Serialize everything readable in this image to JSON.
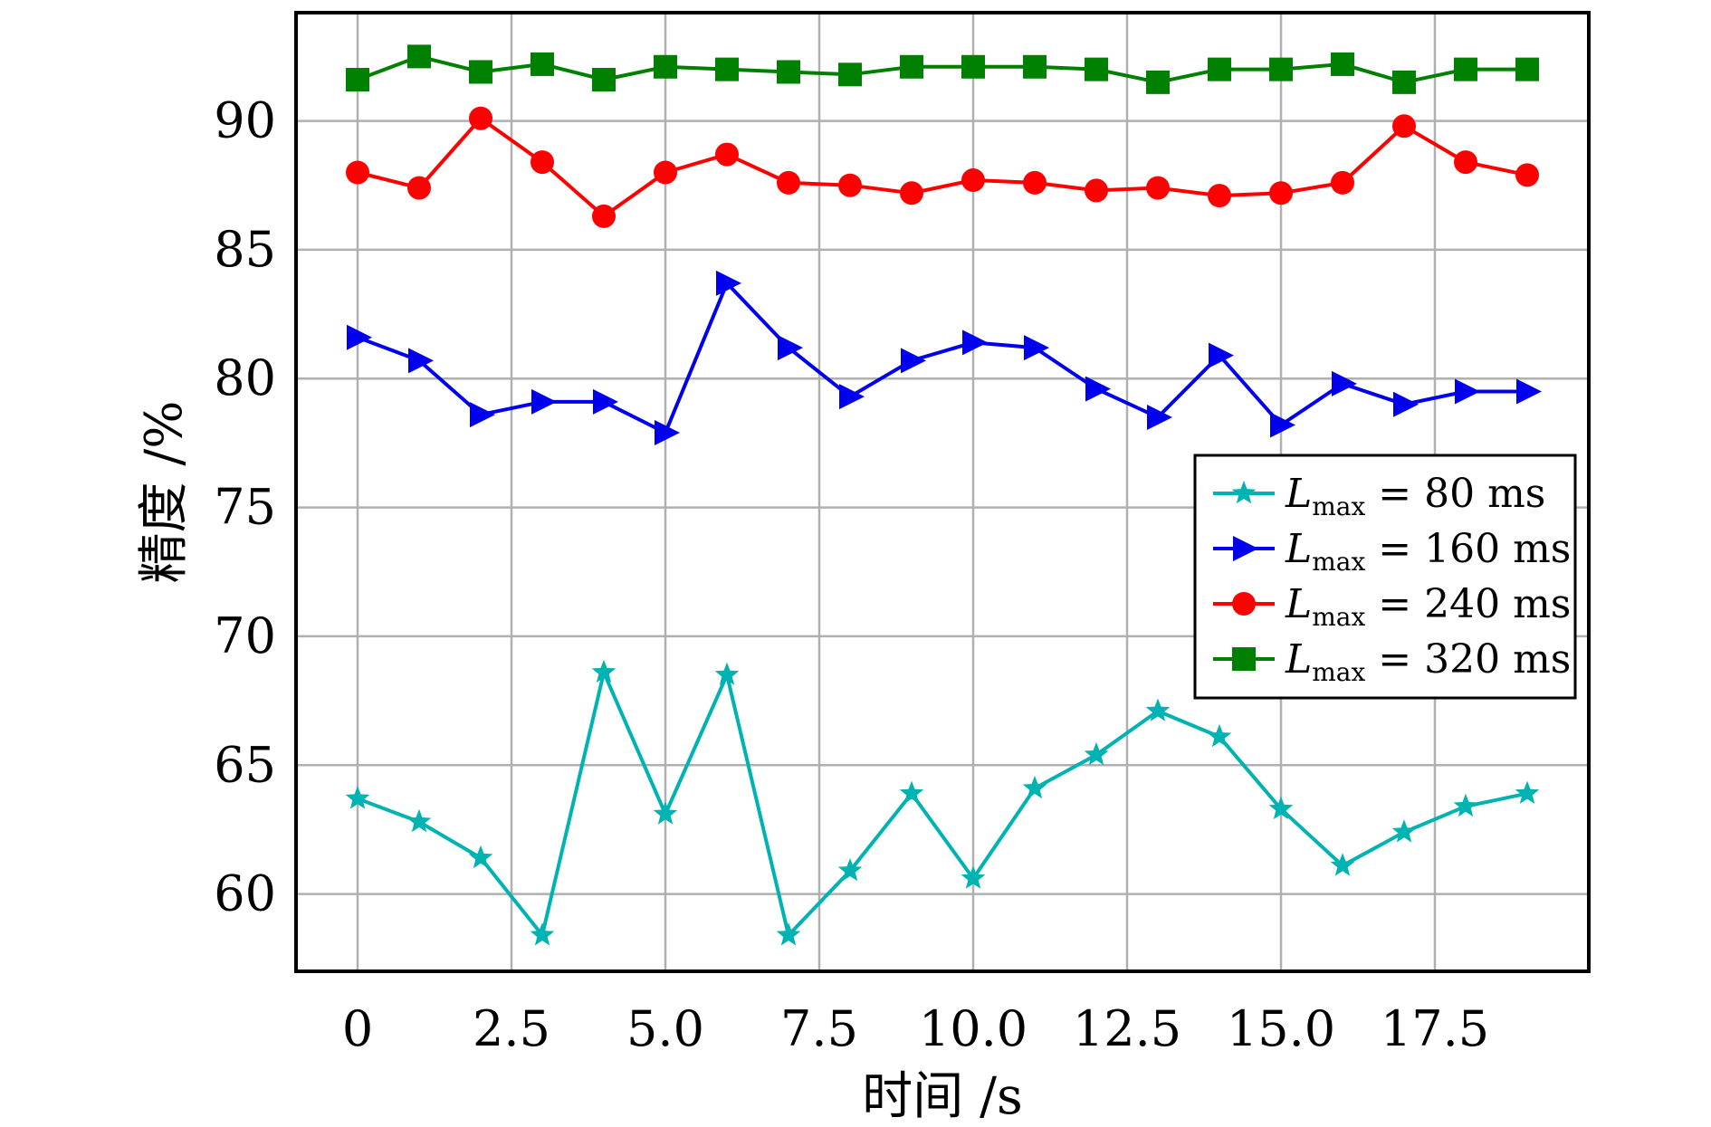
{
  "chart_data": {
    "type": "line",
    "xlabel": "时间 /s",
    "ylabel": "精度 /%",
    "xlim": [
      -1,
      20
    ],
    "ylim": [
      57,
      94.2
    ],
    "xticks": [
      0,
      2.5,
      5.0,
      7.5,
      10.0,
      12.5,
      15.0,
      17.5
    ],
    "xtick_labels": [
      "0",
      "2.5",
      "5.0",
      "7.5",
      "10.0",
      "12.5",
      "15.0",
      "17.5"
    ],
    "yticks": [
      60,
      65,
      70,
      75,
      80,
      85,
      90
    ],
    "ytick_labels": [
      "60",
      "65",
      "70",
      "75",
      "80",
      "85",
      "90"
    ],
    "grid": true,
    "legend_position": "center-right",
    "x": [
      0,
      1,
      2,
      3,
      4,
      5,
      6,
      7,
      8,
      9,
      10,
      11,
      12,
      13,
      14,
      15,
      16,
      17,
      18,
      19
    ],
    "series": [
      {
        "name": "L_max = 80 ms",
        "legend_symbol": "L",
        "legend_sub": "max",
        "legend_rest": " = 80 ms",
        "color": "#00b3b3",
        "marker": "star",
        "values": [
          63.7,
          62.8,
          61.4,
          58.4,
          68.6,
          63.1,
          68.5,
          58.4,
          60.9,
          63.9,
          60.6,
          64.1,
          65.4,
          67.1,
          66.1,
          63.3,
          61.1,
          62.4,
          63.4,
          63.9
        ]
      },
      {
        "name": "L_max = 160 ms",
        "legend_symbol": "L",
        "legend_sub": "max",
        "legend_rest": " = 160 ms",
        "color": "#0000ee",
        "marker": "triangle-right",
        "values": [
          81.6,
          80.7,
          78.6,
          79.1,
          79.1,
          77.9,
          83.7,
          81.2,
          79.3,
          80.7,
          81.4,
          81.2,
          79.6,
          78.5,
          80.9,
          78.2,
          79.8,
          79.0,
          79.5,
          79.5
        ]
      },
      {
        "name": "L_max = 240 ms",
        "legend_symbol": "L",
        "legend_sub": "max",
        "legend_rest": " = 240 ms",
        "color": "#ff0000",
        "marker": "circle",
        "values": [
          88.0,
          87.4,
          90.1,
          88.4,
          86.3,
          88.0,
          88.7,
          87.6,
          87.5,
          87.2,
          87.7,
          87.6,
          87.3,
          87.4,
          87.1,
          87.2,
          87.6,
          89.8,
          88.4,
          87.9
        ]
      },
      {
        "name": "L_max = 320 ms",
        "legend_symbol": "L",
        "legend_sub": "max",
        "legend_rest": " = 320 ms",
        "color": "#008000",
        "marker": "square",
        "values": [
          91.6,
          92.5,
          91.9,
          92.2,
          91.6,
          92.1,
          92.0,
          91.9,
          91.8,
          92.1,
          92.1,
          92.1,
          92.0,
          91.5,
          92.0,
          92.0,
          92.2,
          91.5,
          92.0,
          92.0
        ]
      }
    ]
  }
}
